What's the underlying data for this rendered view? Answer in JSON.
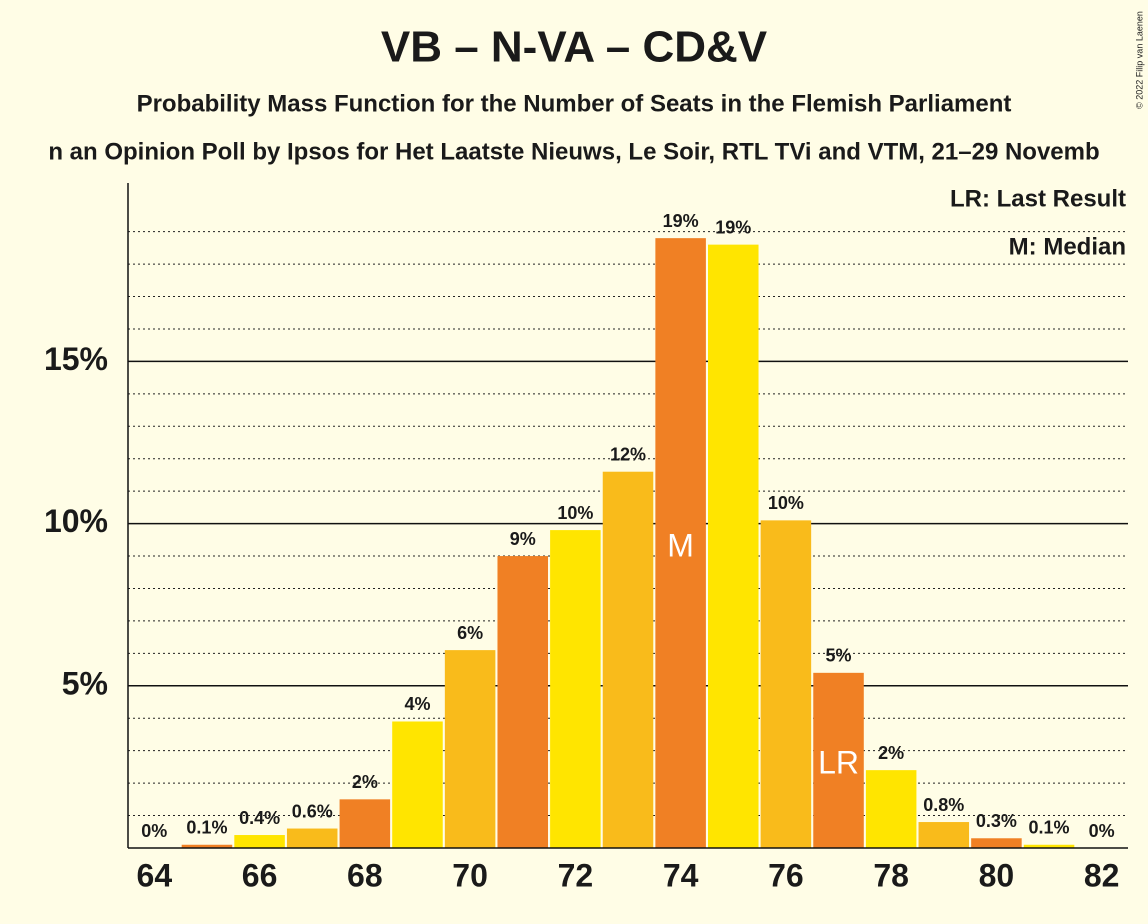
{
  "chart_data": {
    "type": "bar",
    "title": "VB – N-VA – CD&V",
    "subtitle": "Probability Mass Function for the Number of Seats in the Flemish Parliament",
    "caption": "n an Opinion Poll by Ipsos for Het Laatste Nieuws, Le Soir, RTL TVi and VTM, 21–29 Novemb",
    "credit": "© 2022 Filip van Laenen",
    "categories": [
      "64",
      null,
      "66",
      null,
      "68",
      null,
      "70",
      null,
      "72",
      null,
      "74",
      null,
      "76",
      null,
      "78",
      null,
      "80",
      null,
      "82"
    ],
    "values": [
      0,
      0.1,
      0.4,
      0.6,
      1.5,
      3.9,
      6.1,
      9.0,
      9.8,
      11.6,
      18.8,
      18.6,
      10.1,
      5.4,
      2.4,
      0.8,
      0.3,
      0.1,
      0
    ],
    "value_labels": [
      "0%",
      "0.1%",
      "0.4%",
      "0.6%",
      "2%",
      "4%",
      "6%",
      "9%",
      "10%",
      "12%",
      "19%",
      "19%",
      "10%",
      "5%",
      "2%",
      "0.8%",
      "0.3%",
      "0.1%",
      "0%"
    ],
    "colors": [
      "#f9bb1b",
      "#f08024",
      "#ffe500",
      "#f9bb1b",
      "#f08024",
      "#ffe500",
      "#f9bb1b",
      "#f08024",
      "#ffe500",
      "#f9bb1b",
      "#f08024",
      "#ffe500",
      "#f9bb1b",
      "#f08024",
      "#ffe500",
      "#f9bb1b",
      "#f08024",
      "#ffe500",
      "#f9bb1b"
    ],
    "ylim": [
      0,
      20.5
    ],
    "yticks": [
      {
        "value": 5,
        "label": "5%"
      },
      {
        "value": 10,
        "label": "10%"
      },
      {
        "value": 15,
        "label": "15%"
      }
    ],
    "minor_yticks": [
      1,
      2,
      3,
      4,
      6,
      7,
      8,
      9,
      11,
      12,
      13,
      14,
      16,
      17,
      18,
      19
    ],
    "grid": true,
    "annotations": [
      {
        "bar": 10,
        "text": "M"
      },
      {
        "bar": 13,
        "text": "LR"
      }
    ],
    "notes": [
      "LR: Last Result",
      "M: Median"
    ]
  }
}
